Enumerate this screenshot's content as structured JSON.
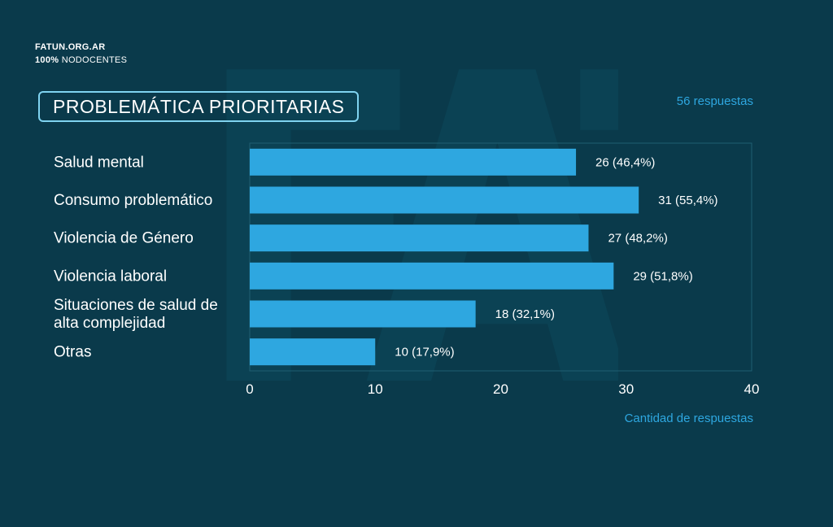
{
  "brand": {
    "site": "FATUN.ORG.AR",
    "tagline_bold": "100%",
    "tagline_rest": " NODOCENTES"
  },
  "watermark_text": "FATUN",
  "title": "PROBLEMÁTICA PRIORITARIAS",
  "responses_note": "56 respuestas",
  "colors": {
    "background": "#0a3a4b",
    "bar": "#2ea7e0",
    "accent": "#2ea7e0",
    "title_border": "#7fd3f0"
  },
  "chart_data": {
    "type": "bar",
    "orientation": "horizontal",
    "title": "PROBLEMÁTICA PRIORITARIAS",
    "categories": [
      [
        "Salud mental"
      ],
      [
        "Consumo problemático"
      ],
      [
        "Violencia de Género"
      ],
      [
        "Violencia laboral"
      ],
      [
        "Situaciones de salud de",
        "alta complejidad"
      ],
      [
        "Otras"
      ]
    ],
    "values": [
      26,
      31,
      27,
      29,
      18,
      10
    ],
    "value_labels": [
      "26 (46,4%)",
      "31 (55,4%)",
      "27 (48,2%)",
      "29 (51,8%)",
      "18 (32,1%)",
      "10 (17,9%)"
    ],
    "xlabel": "Cantidad de respuestas",
    "xlim": [
      0,
      40
    ],
    "xticks": [
      0,
      10,
      20,
      30,
      40
    ],
    "grid": false
  }
}
